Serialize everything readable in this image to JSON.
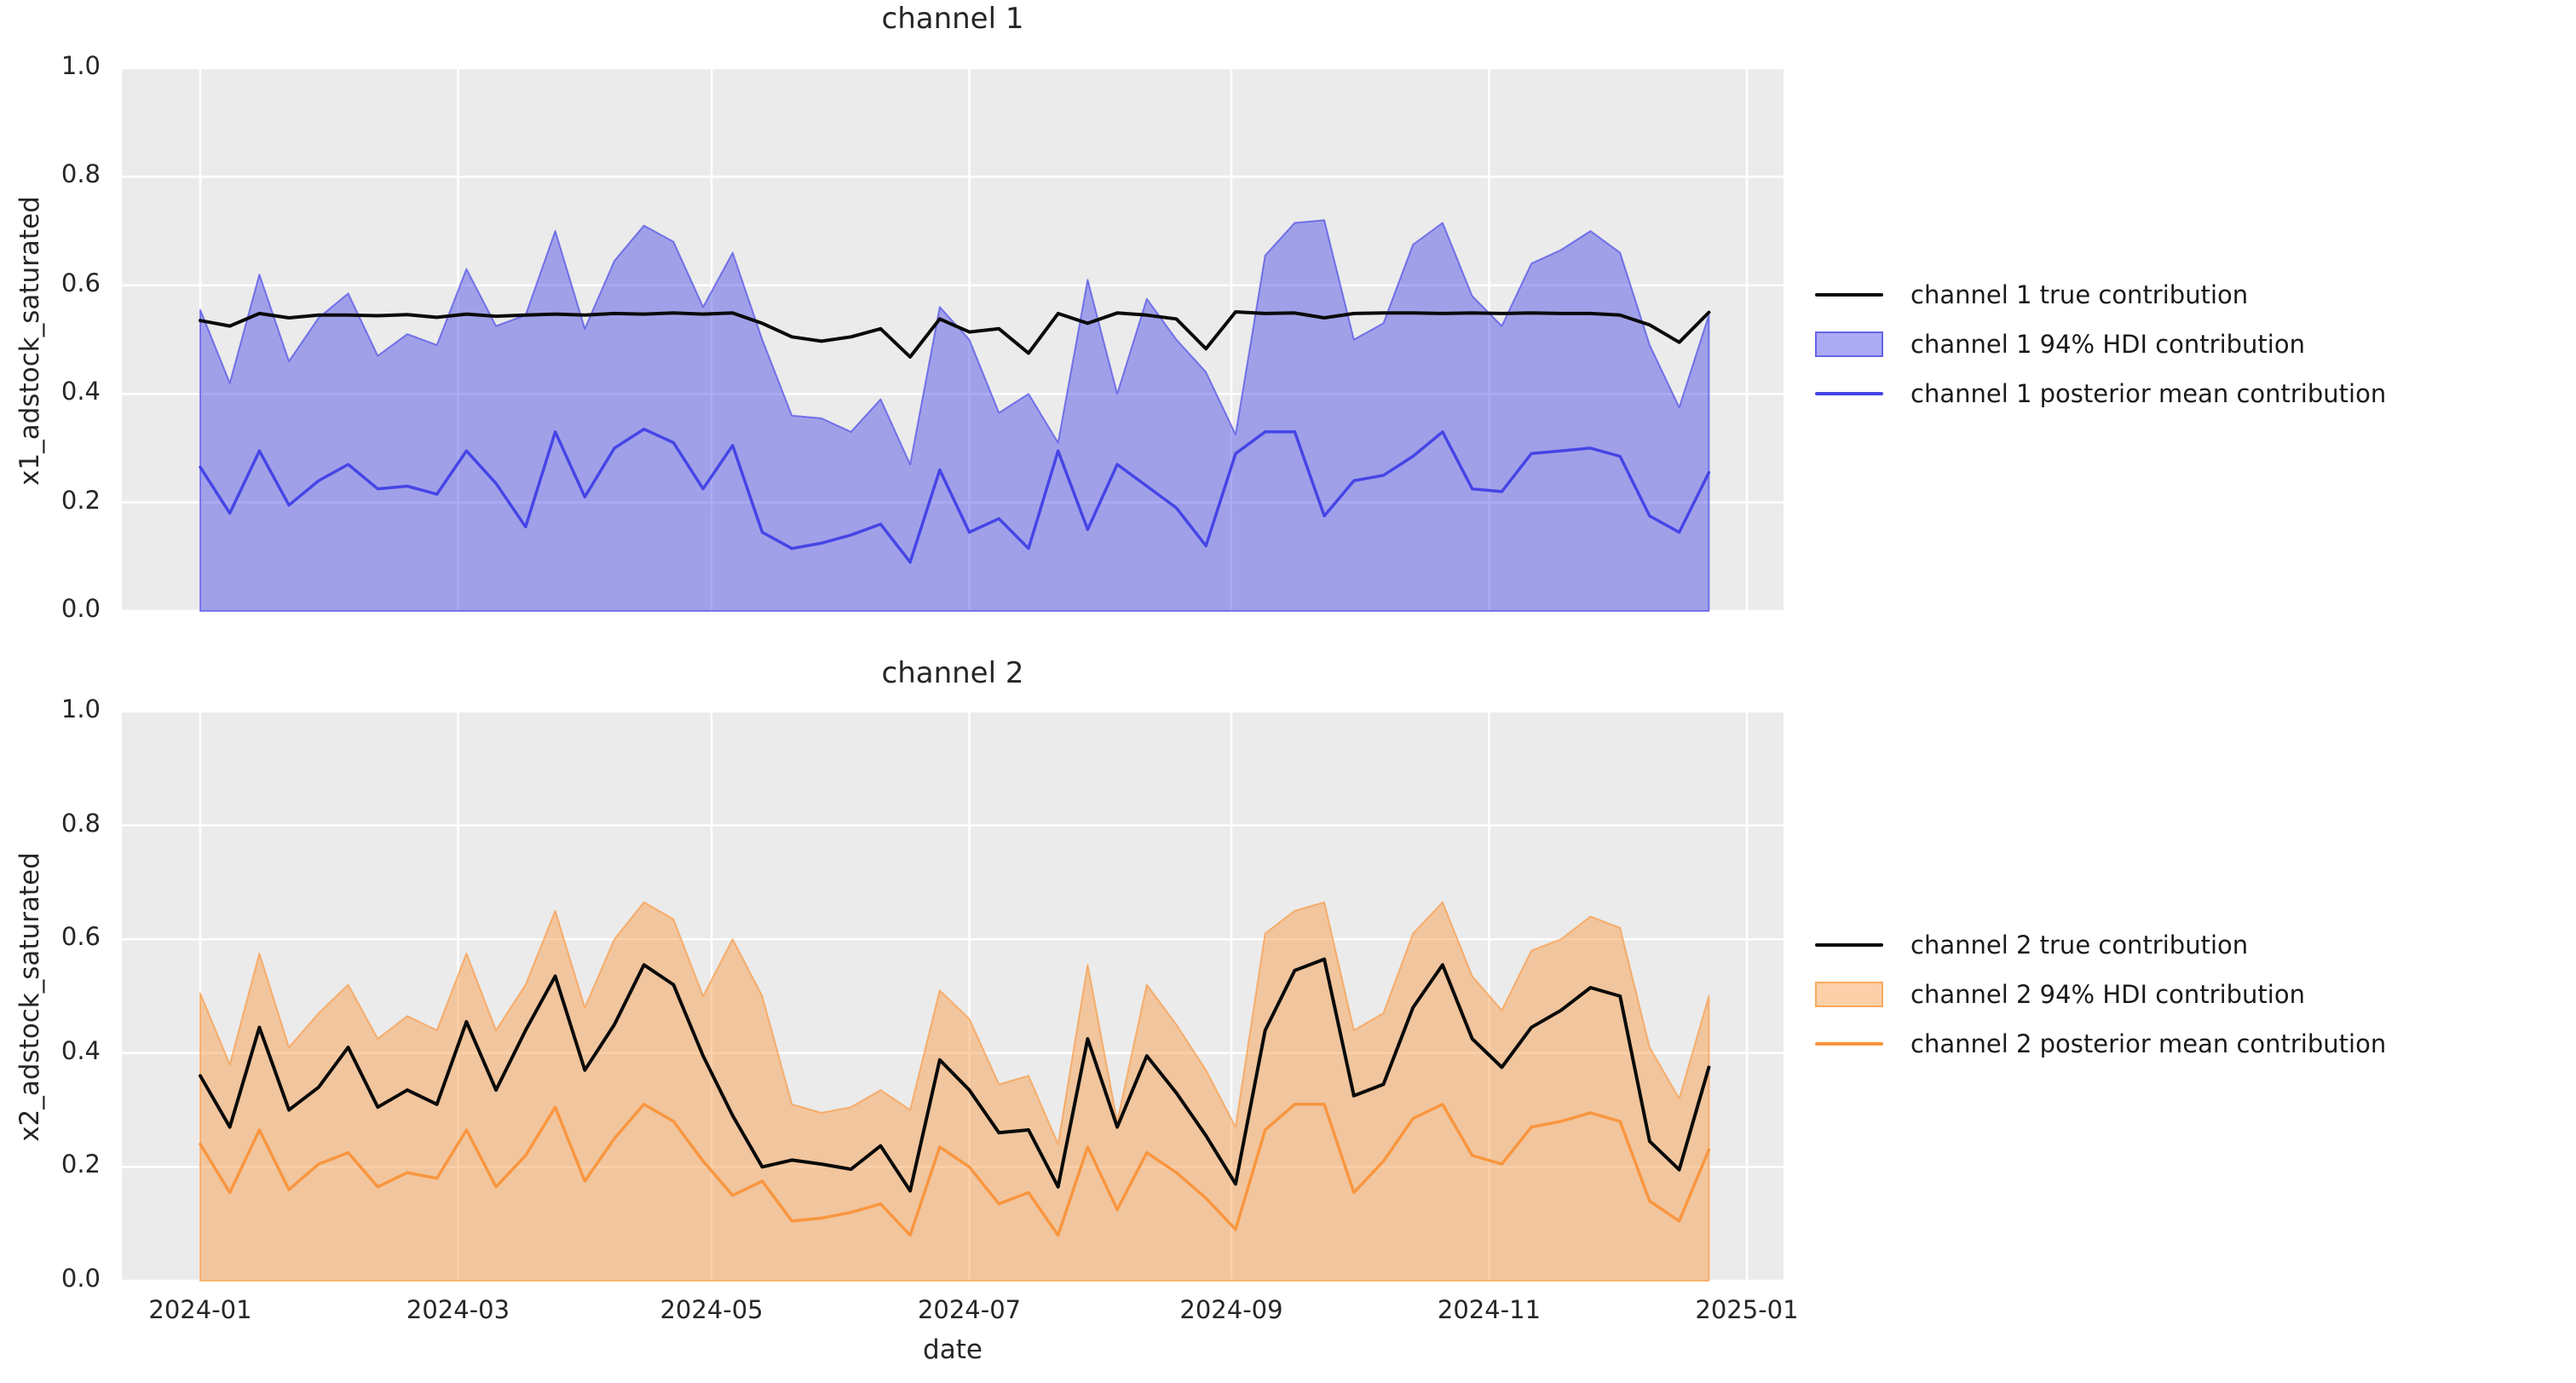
{
  "figure": {
    "xlabel": "date",
    "background": "#ffffff",
    "axes_background": "#ebebeb",
    "grid_color": "#ffffff",
    "text_color": "#262626"
  },
  "chart_data": [
    {
      "type": "line",
      "title": "channel 1",
      "ylabel": "x1_adstock_saturated",
      "ylim": [
        0.0,
        1.0
      ],
      "grid": true,
      "legend_position": "center right outside",
      "y_ticks": [
        0.0,
        0.2,
        0.4,
        0.6,
        0.8,
        1.0
      ],
      "y_tick_labels": [
        "0.0",
        "0.2",
        "0.4",
        "0.6",
        "0.8",
        "1.0"
      ],
      "x_start": "2024-01-01",
      "x_interval_days": 7,
      "x_tick_labels": [
        "2024-01",
        "2024-03",
        "2024-05",
        "2024-07",
        "2024-09",
        "2024-11",
        "2025-01"
      ],
      "series": [
        {
          "name": "channel 1 true contribution",
          "kind": "line",
          "color": "#0a0a0a",
          "values": [
            0.535,
            0.525,
            0.548,
            0.54,
            0.545,
            0.545,
            0.544,
            0.546,
            0.541,
            0.547,
            0.543,
            0.545,
            0.547,
            0.545,
            0.548,
            0.547,
            0.549,
            0.547,
            0.549,
            0.53,
            0.505,
            0.497,
            0.505,
            0.52,
            0.468,
            0.538,
            0.514,
            0.52,
            0.475,
            0.548,
            0.53,
            0.549,
            0.545,
            0.538,
            0.483,
            0.551,
            0.548,
            0.549,
            0.54,
            0.548,
            0.549,
            0.549,
            0.548,
            0.549,
            0.548,
            0.549,
            0.548,
            0.548,
            0.545,
            0.527,
            0.495,
            0.55
          ]
        },
        {
          "name": "channel 1 94% HDI contribution",
          "kind": "band",
          "color": "#4545e6",
          "fill_opacity": 0.45,
          "lower": 0.0,
          "upper": [
            0.555,
            0.42,
            0.62,
            0.46,
            0.54,
            0.585,
            0.47,
            0.51,
            0.49,
            0.63,
            0.525,
            0.545,
            0.7,
            0.52,
            0.645,
            0.71,
            0.68,
            0.56,
            0.66,
            0.5,
            0.36,
            0.355,
            0.33,
            0.39,
            0.27,
            0.56,
            0.5,
            0.365,
            0.4,
            0.31,
            0.61,
            0.4,
            0.575,
            0.5,
            0.44,
            0.325,
            0.655,
            0.715,
            0.72,
            0.5,
            0.53,
            0.675,
            0.715,
            0.58,
            0.525,
            0.64,
            0.665,
            0.7,
            0.66,
            0.49,
            0.375,
            0.545
          ]
        },
        {
          "name": "channel 1 posterior mean contribution",
          "kind": "line",
          "color": "#4545e6",
          "values": [
            0.265,
            0.18,
            0.295,
            0.195,
            0.24,
            0.27,
            0.225,
            0.23,
            0.215,
            0.295,
            0.235,
            0.155,
            0.33,
            0.21,
            0.3,
            0.335,
            0.31,
            0.225,
            0.305,
            0.145,
            0.115,
            0.125,
            0.14,
            0.16,
            0.09,
            0.26,
            0.145,
            0.17,
            0.115,
            0.295,
            0.15,
            0.27,
            0.23,
            0.19,
            0.12,
            0.29,
            0.33,
            0.33,
            0.175,
            0.24,
            0.25,
            0.285,
            0.33,
            0.225,
            0.22,
            0.29,
            0.295,
            0.3,
            0.285,
            0.175,
            0.145,
            0.255
          ]
        }
      ]
    },
    {
      "type": "line",
      "title": "channel 2",
      "ylabel": "x2_adstock_saturated",
      "ylim": [
        0.0,
        1.0
      ],
      "grid": true,
      "legend_position": "center right outside",
      "y_ticks": [
        0.0,
        0.2,
        0.4,
        0.6,
        0.8,
        1.0
      ],
      "y_tick_labels": [
        "0.0",
        "0.2",
        "0.4",
        "0.6",
        "0.8",
        "1.0"
      ],
      "x_start": "2024-01-01",
      "x_interval_days": 7,
      "x_tick_labels": [
        "2024-01",
        "2024-03",
        "2024-05",
        "2024-07",
        "2024-09",
        "2024-11",
        "2025-01"
      ],
      "series": [
        {
          "name": "channel 2 true contribution",
          "kind": "line",
          "color": "#0a0a0a",
          "values": [
            0.36,
            0.27,
            0.445,
            0.3,
            0.34,
            0.41,
            0.305,
            0.335,
            0.31,
            0.455,
            0.335,
            0.44,
            0.535,
            0.37,
            0.45,
            0.555,
            0.52,
            0.395,
            0.29,
            0.2,
            0.212,
            0.205,
            0.196,
            0.237,
            0.158,
            0.388,
            0.335,
            0.26,
            0.265,
            0.165,
            0.425,
            0.27,
            0.395,
            0.33,
            0.255,
            0.17,
            0.44,
            0.545,
            0.565,
            0.325,
            0.345,
            0.48,
            0.555,
            0.425,
            0.375,
            0.445,
            0.475,
            0.515,
            0.5,
            0.245,
            0.195,
            0.375
          ]
        },
        {
          "name": "channel 2 94% HDI contribution",
          "kind": "band",
          "color": "#f9963f",
          "fill_opacity": 0.45,
          "lower": 0.0,
          "upper": [
            0.505,
            0.38,
            0.575,
            0.41,
            0.47,
            0.52,
            0.425,
            0.465,
            0.44,
            0.575,
            0.44,
            0.52,
            0.65,
            0.48,
            0.6,
            0.665,
            0.635,
            0.5,
            0.6,
            0.5,
            0.31,
            0.295,
            0.305,
            0.335,
            0.3,
            0.51,
            0.46,
            0.345,
            0.36,
            0.24,
            0.555,
            0.28,
            0.52,
            0.45,
            0.37,
            0.27,
            0.61,
            0.65,
            0.665,
            0.44,
            0.47,
            0.61,
            0.665,
            0.535,
            0.475,
            0.58,
            0.6,
            0.64,
            0.62,
            0.41,
            0.32,
            0.5
          ]
        },
        {
          "name": "channel 2 posterior mean contribution",
          "kind": "line",
          "color": "#f9963f",
          "values": [
            0.24,
            0.155,
            0.265,
            0.16,
            0.205,
            0.225,
            0.165,
            0.19,
            0.18,
            0.265,
            0.165,
            0.22,
            0.305,
            0.175,
            0.25,
            0.31,
            0.28,
            0.21,
            0.15,
            0.175,
            0.105,
            0.11,
            0.12,
            0.135,
            0.08,
            0.235,
            0.2,
            0.135,
            0.155,
            0.08,
            0.235,
            0.125,
            0.225,
            0.19,
            0.145,
            0.09,
            0.265,
            0.31,
            0.31,
            0.155,
            0.21,
            0.285,
            0.31,
            0.22,
            0.205,
            0.27,
            0.28,
            0.295,
            0.28,
            0.14,
            0.105,
            0.23
          ]
        }
      ]
    }
  ]
}
